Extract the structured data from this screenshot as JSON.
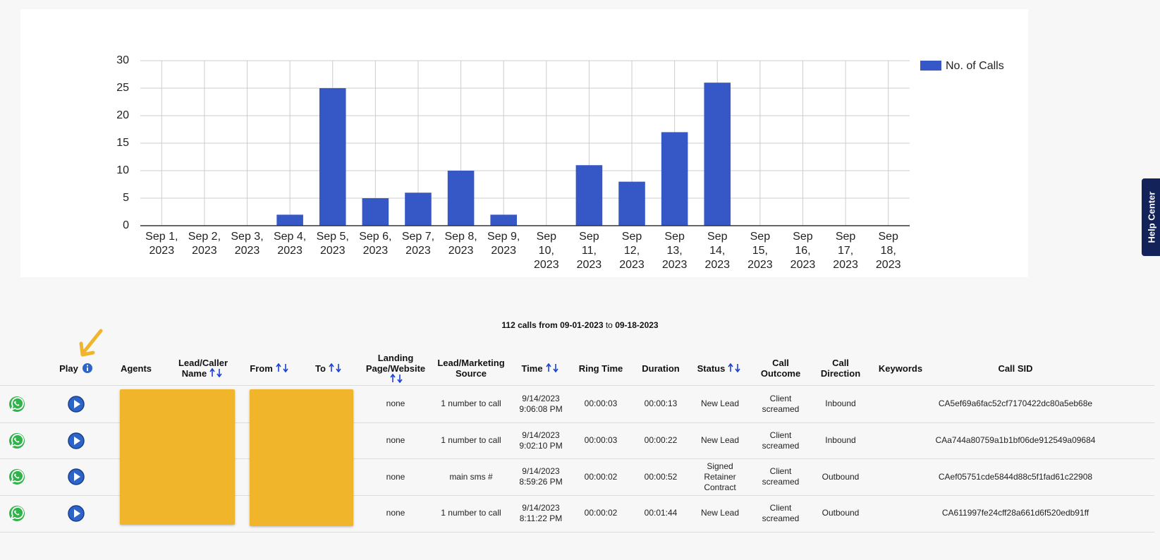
{
  "chart_data": {
    "type": "bar",
    "categories": [
      "Sep 1, 2023",
      "Sep 2, 2023",
      "Sep 3, 2023",
      "Sep 4, 2023",
      "Sep 5, 2023",
      "Sep 6, 2023",
      "Sep 7, 2023",
      "Sep 8, 2023",
      "Sep 9, 2023",
      "Sep 10, 2023",
      "Sep 11, 2023",
      "Sep 12, 2023",
      "Sep 13, 2023",
      "Sep 14, 2023",
      "Sep 15, 2023",
      "Sep 16, 2023",
      "Sep 17, 2023",
      "Sep 18, 2023"
    ],
    "series": [
      {
        "name": "No. of Calls",
        "color": "#3558c6",
        "values": [
          0,
          0,
          0,
          2,
          25,
          5,
          6,
          10,
          2,
          0,
          11,
          8,
          17,
          26,
          0,
          0,
          0,
          0
        ]
      }
    ],
    "ylim": [
      0,
      30
    ],
    "yticks": [
      0,
      5,
      10,
      15,
      20,
      25,
      30
    ],
    "grid": true,
    "legend": "right"
  },
  "summary": {
    "count_from": "112 calls from 09-01-2023",
    "to": "to",
    "end_date": "09-18-2023"
  },
  "table": {
    "columns": [
      {
        "key": "play",
        "label": "Play",
        "info": true
      },
      {
        "key": "agents",
        "label": "Agents"
      },
      {
        "key": "lead",
        "label": "Lead/Caller Name",
        "sortable": true
      },
      {
        "key": "from",
        "label": "From",
        "sortable": true
      },
      {
        "key": "to",
        "label": "To",
        "sortable": true
      },
      {
        "key": "landing",
        "label": "Landing Page/Website",
        "sortable": true
      },
      {
        "key": "source",
        "label": "Lead/Marketing Source"
      },
      {
        "key": "time",
        "label": "Time",
        "sortable": true
      },
      {
        "key": "ring_time",
        "label": "Ring Time"
      },
      {
        "key": "duration",
        "label": "Duration"
      },
      {
        "key": "status",
        "label": "Status",
        "sortable": true
      },
      {
        "key": "outcome",
        "label": "Call Outcome"
      },
      {
        "key": "direction",
        "label": "Call Direction"
      },
      {
        "key": "keywords",
        "label": "Keywords"
      },
      {
        "key": "sid",
        "label": "Call SID"
      }
    ],
    "rows": [
      {
        "landing": "none",
        "source": "1 number to call",
        "time": "9/14/2023 9:06:08 PM",
        "ring_time": "00:00:03",
        "duration": "00:00:13",
        "status": "New Lead",
        "outcome": "Client screamed",
        "direction": "Inbound",
        "sid": "CA5ef69a6fac52cf7170422dc80a5eb68e"
      },
      {
        "landing": "none",
        "source": "1 number to call",
        "time": "9/14/2023 9:02:10 PM",
        "ring_time": "00:00:03",
        "duration": "00:00:22",
        "status": "New Lead",
        "outcome": "Client screamed",
        "direction": "Inbound",
        "sid": "CAa744a80759a1b1bf06de912549a09684"
      },
      {
        "landing": "none",
        "source": "main sms #",
        "time": "9/14/2023 8:59:26 PM",
        "ring_time": "00:00:02",
        "duration": "00:00:52",
        "status": "Signed Retainer Contract",
        "outcome": "Client screamed",
        "direction": "Outbound",
        "sid": "CAef05751cde5844d88c5f1fad61c22908"
      },
      {
        "landing": "none",
        "source": "1 number to call",
        "time": "9/14/2023 8:11:22 PM",
        "ring_time": "00:00:02",
        "duration": "00:01:44",
        "status": "New Lead",
        "outcome": "Client screamed",
        "direction": "Outbound",
        "sid": "CA611997fe24cff28a661d6f520edb91ff"
      }
    ]
  },
  "help_center": "Help Center"
}
